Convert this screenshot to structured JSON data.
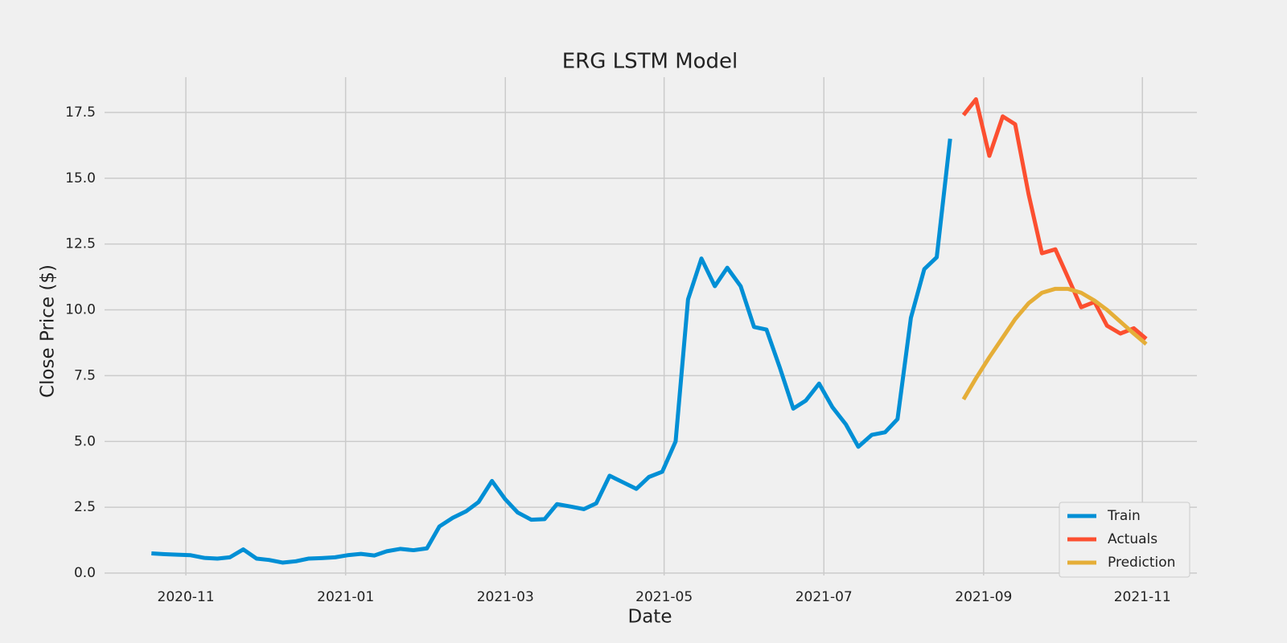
{
  "chart_data": {
    "type": "line",
    "title": "ERG LSTM Model",
    "x_label": "Date",
    "y_label": "Close Price ($)",
    "xlim": [
      2020.748,
      2021.89
    ],
    "ylim": [
      -0.09,
      18.84
    ],
    "xticks": [
      {
        "value": 2020.833,
        "label": "2020-11"
      },
      {
        "value": 2021.0,
        "label": "2021-01"
      },
      {
        "value": 2021.167,
        "label": "2021-03"
      },
      {
        "value": 2021.333,
        "label": "2021-05"
      },
      {
        "value": 2021.5,
        "label": "2021-07"
      },
      {
        "value": 2021.667,
        "label": "2021-09"
      },
      {
        "value": 2021.833,
        "label": "2021-11"
      }
    ],
    "yticks": [
      {
        "value": 0,
        "label": "0.0"
      },
      2.5,
      {
        "value": 5,
        "label": "5.0"
      },
      7.5,
      {
        "value": 10,
        "label": "10.0"
      },
      12.5,
      {
        "value": 15,
        "label": "15.0"
      },
      17.5
    ],
    "grid": true,
    "legend": "lower right",
    "series": [
      {
        "name": "Train",
        "color": "#008fd5",
        "x": [
          2020.797,
          2020.811,
          2020.824,
          2020.838,
          2020.852,
          2020.866,
          2020.879,
          2020.893,
          2020.907,
          2020.92,
          2020.934,
          2020.948,
          2020.961,
          2020.975,
          2020.989,
          2021.002,
          2021.016,
          2021.03,
          2021.043,
          2021.057,
          2021.071,
          2021.085,
          2021.098,
          2021.112,
          2021.126,
          2021.139,
          2021.153,
          2021.167,
          2021.18,
          2021.194,
          2021.208,
          2021.221,
          2021.235,
          2021.249,
          2021.262,
          2021.276,
          2021.29,
          2021.304,
          2021.317,
          2021.331,
          2021.345,
          2021.358,
          2021.372,
          2021.386,
          2021.399,
          2021.413,
          2021.427,
          2021.44,
          2021.454,
          2021.468,
          2021.481,
          2021.495,
          2021.509,
          2021.523,
          2021.536,
          2021.55,
          2021.564,
          2021.577,
          2021.591,
          2021.605,
          2021.618,
          2021.632
        ],
        "values": [
          0.75,
          0.72,
          0.7,
          0.68,
          0.58,
          0.55,
          0.6,
          0.9,
          0.55,
          0.5,
          0.4,
          0.45,
          0.55,
          0.57,
          0.6,
          0.68,
          0.73,
          0.67,
          0.83,
          0.92,
          0.87,
          0.94,
          1.77,
          2.1,
          2.35,
          2.7,
          3.5,
          2.8,
          2.3,
          2.03,
          2.05,
          2.62,
          2.53,
          2.43,
          2.65,
          3.7,
          3.45,
          3.2,
          3.65,
          3.85,
          5.0,
          10.4,
          11.95,
          10.9,
          11.6,
          10.9,
          9.35,
          9.25,
          7.8,
          6.25,
          6.55,
          7.2,
          6.3,
          5.65,
          4.8,
          5.25,
          5.35,
          5.85,
          9.7,
          11.55,
          12.0,
          16.5
        ]
      },
      {
        "name": "Actuals",
        "color": "#fc4f30",
        "x": [
          2021.646,
          2021.659,
          2021.673,
          2021.687,
          2021.7,
          2021.714,
          2021.728,
          2021.742,
          2021.755,
          2021.769,
          2021.783,
          2021.796,
          2021.81,
          2021.824,
          2021.837
        ],
        "values": [
          17.4,
          18.0,
          15.85,
          17.35,
          17.05,
          14.4,
          12.15,
          12.3,
          11.25,
          10.1,
          10.3,
          9.4,
          9.1,
          9.3,
          8.9
        ]
      },
      {
        "name": "Prediction",
        "color": "#e5ae38",
        "x": [
          2021.646,
          2021.659,
          2021.673,
          2021.687,
          2021.7,
          2021.714,
          2021.728,
          2021.742,
          2021.755,
          2021.769,
          2021.783,
          2021.796,
          2021.81,
          2021.824,
          2021.837
        ],
        "values": [
          6.6,
          7.4,
          8.2,
          8.95,
          9.65,
          10.25,
          10.65,
          10.8,
          10.8,
          10.65,
          10.35,
          10.0,
          9.55,
          9.1,
          8.7
        ]
      }
    ]
  }
}
